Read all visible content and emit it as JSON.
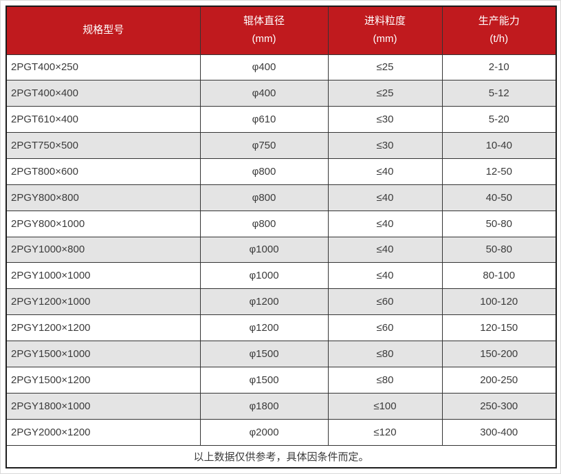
{
  "colors": {
    "header_bg": "#c01a1e",
    "header_text": "#ffffff",
    "row_alt_bg": "#e4e4e4",
    "row_bg": "#ffffff",
    "border_color": "#333333",
    "text_color": "#3b3b3b"
  },
  "chart_data": {
    "type": "table",
    "columns": [
      {
        "title": "规格型号"
      },
      {
        "title": "辊体直径",
        "unit": "(mm)"
      },
      {
        "title": "进料粒度",
        "unit": "(mm)"
      },
      {
        "title": "生产能力",
        "unit": "(t/h)"
      }
    ],
    "rows": [
      {
        "model": "2PGT400×250",
        "diameter": "φ400",
        "feed_size": "≤25",
        "capacity": "2-10"
      },
      {
        "model": "2PGT400×400",
        "diameter": "φ400",
        "feed_size": "≤25",
        "capacity": "5-12"
      },
      {
        "model": "2PGT610×400",
        "diameter": "φ610",
        "feed_size": "≤30",
        "capacity": "5-20"
      },
      {
        "model": "2PGT750×500",
        "diameter": "φ750",
        "feed_size": "≤30",
        "capacity": "10-40"
      },
      {
        "model": "2PGT800×600",
        "diameter": "φ800",
        "feed_size": "≤40",
        "capacity": "12-50"
      },
      {
        "model": "2PGY800×800",
        "diameter": "φ800",
        "feed_size": "≤40",
        "capacity": "40-50"
      },
      {
        "model": "2PGY800×1000",
        "diameter": "φ800",
        "feed_size": "≤40",
        "capacity": "50-80"
      },
      {
        "model": "2PGY1000×800",
        "diameter": "φ1000",
        "feed_size": "≤40",
        "capacity": "50-80"
      },
      {
        "model": "2PGY1000×1000",
        "diameter": "φ1000",
        "feed_size": "≤40",
        "capacity": "80-100"
      },
      {
        "model": "2PGY1200×1000",
        "diameter": "φ1200",
        "feed_size": "≤60",
        "capacity": "100-120"
      },
      {
        "model": "2PGY1200×1200",
        "diameter": "φ1200",
        "feed_size": "≤60",
        "capacity": "120-150"
      },
      {
        "model": "2PGY1500×1000",
        "diameter": "φ1500",
        "feed_size": "≤80",
        "capacity": "150-200"
      },
      {
        "model": "2PGY1500×1200",
        "diameter": "φ1500",
        "feed_size": "≤80",
        "capacity": "200-250"
      },
      {
        "model": "2PGY1800×1000",
        "diameter": "φ1800",
        "feed_size": "≤100",
        "capacity": "250-300"
      },
      {
        "model": "2PGY2000×1200",
        "diameter": "φ2000",
        "feed_size": "≤120",
        "capacity": "300-400"
      }
    ],
    "footer_note": "以上数据仅供参考，具体因条件而定。"
  }
}
